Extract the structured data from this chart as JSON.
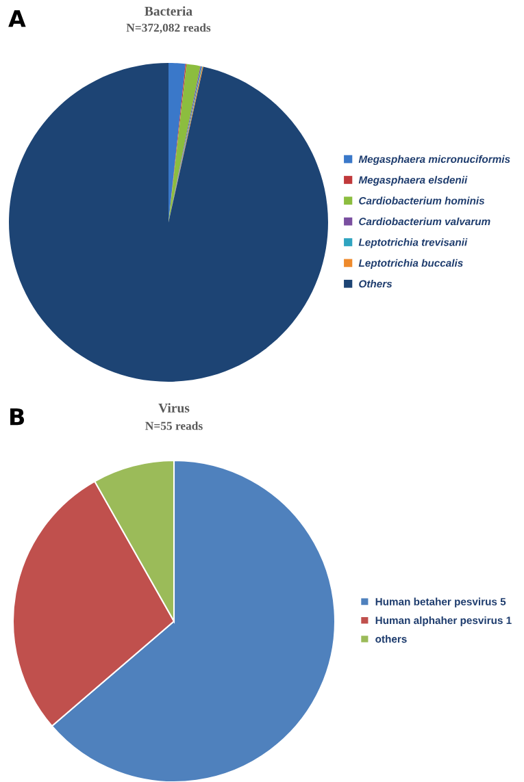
{
  "chart_data": [
    {
      "type": "pie",
      "title": "Bacteria",
      "subtitle": "N=372,082 reads",
      "annotations": [
        "A"
      ],
      "categories": [
        "Megasphaera micronuciformis",
        "Megasphaera elsdenii",
        "Cardiobacterium hominis",
        "Cardiobacterium valvarum",
        "Leptotrichia trevisanii",
        "Leptotrichia buccalis",
        "Others"
      ],
      "values": [
        1.7,
        0.1,
        1.4,
        0.1,
        0.1,
        0.1,
        96.5
      ],
      "colors": [
        "#3a78c9",
        "#c0393b",
        "#8cbd3f",
        "#7a4fa0",
        "#2fa4c0",
        "#ee8a2c",
        "#1d4474"
      ],
      "legend": "right"
    },
    {
      "type": "pie",
      "title": "Virus",
      "subtitle": "N=55 reads",
      "annotations": [
        "B"
      ],
      "categories": [
        "Human betaher pesvirus 5",
        "Human alphaher pesvirus 1",
        "others"
      ],
      "values": [
        63.7,
        28.1,
        8.2
      ],
      "colors": [
        "#4f81bd",
        "#c0504d",
        "#9bbb59"
      ],
      "legend": "right"
    }
  ]
}
